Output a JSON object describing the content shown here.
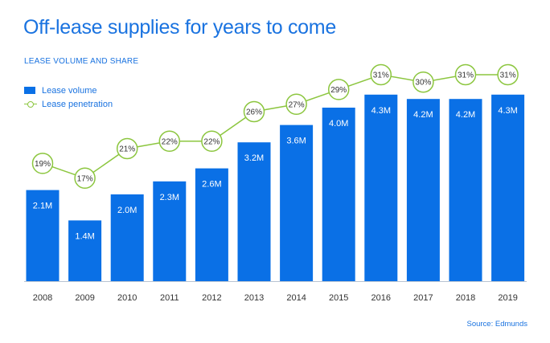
{
  "title": "Off-lease supplies for years to come",
  "subtitle": "LEASE VOLUME AND SHARE",
  "legend": {
    "volume": "Lease volume",
    "penetration": "Lease penetration"
  },
  "source": "Source: Edmunds",
  "colors": {
    "bar": "#0a70e6",
    "line": "#8cc63f",
    "title": "#1a73e0"
  },
  "chart_data": {
    "type": "bar",
    "categories": [
      "2008",
      "2009",
      "2010",
      "2011",
      "2012",
      "2013",
      "2014",
      "2015",
      "2016",
      "2017",
      "2018",
      "2019"
    ],
    "series": [
      {
        "name": "Lease volume",
        "type": "bar",
        "values": [
          2.1,
          1.4,
          2.0,
          2.3,
          2.6,
          3.2,
          3.6,
          4.0,
          4.3,
          4.2,
          4.2,
          4.3
        ],
        "labels": [
          "2.1M",
          "1.4M",
          "2.0M",
          "2.3M",
          "2.6M",
          "3.2M",
          "3.6M",
          "4.0M",
          "4.3M",
          "4.2M",
          "4.2M",
          "4.3M"
        ]
      },
      {
        "name": "Lease penetration",
        "type": "line",
        "values": [
          19,
          17,
          21,
          22,
          22,
          26,
          27,
          29,
          31,
          30,
          31,
          31
        ],
        "labels": [
          "19%",
          "17%",
          "21%",
          "22%",
          "22%",
          "26%",
          "27%",
          "29%",
          "31%",
          "30%",
          "31%",
          "31%"
        ]
      }
    ],
    "legend_position": "top-left",
    "grid": false
  }
}
